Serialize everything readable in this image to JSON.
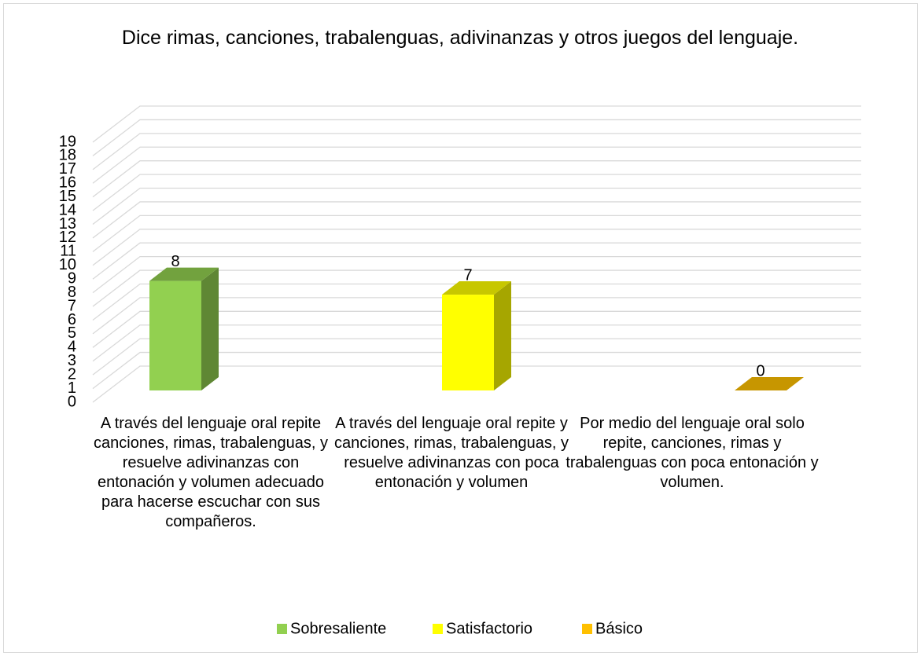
{
  "chart_data": {
    "type": "bar3d",
    "title": "Dice rimas, canciones, trabalenguas, adivinanzas y otros juegos del lenguaje.",
    "categories": [
      "A través del lenguaje oral repite canciones, rimas, trabalenguas, y resuelve adivinanzas con entonación y volumen adecuado para hacerse escuchar con sus compañeros.",
      "A través del lenguaje oral repite y canciones, rimas, trabalenguas, y resuelve adivinanzas con poca entonación y volumen",
      "Por medio del lenguaje oral solo repite, canciones, rimas y trabalenguas con poca entonación y volumen."
    ],
    "series": [
      {
        "name": "Sobresaliente",
        "color": "#92d050",
        "values": [
          8,
          null,
          null
        ]
      },
      {
        "name": "Satisfactorio",
        "color": "#ffff00",
        "values": [
          null,
          7,
          null
        ]
      },
      {
        "name": "Básico",
        "color": "#ffc000",
        "values": [
          null,
          null,
          0
        ]
      }
    ],
    "ylim": [
      0,
      19
    ],
    "yticks": [
      0,
      1,
      2,
      3,
      4,
      5,
      6,
      7,
      8,
      9,
      10,
      11,
      12,
      13,
      14,
      15,
      16,
      17,
      18,
      19
    ],
    "grid": true,
    "legend": "bottom"
  }
}
